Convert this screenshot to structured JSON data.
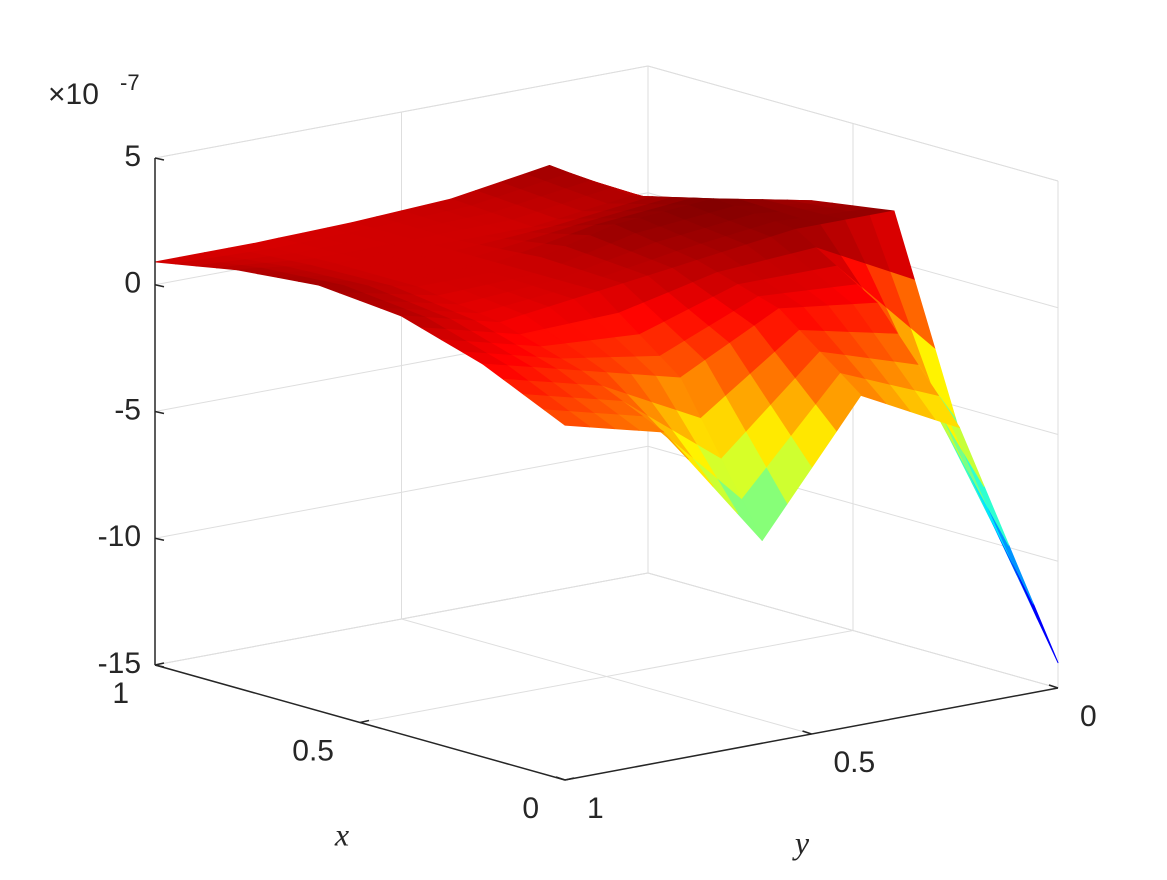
{
  "chart_data": {
    "type": "surface",
    "x": [
      0,
      0.2,
      0.4,
      0.6,
      0.8,
      1
    ],
    "y": [
      0,
      0.2,
      0.4,
      0.6,
      0.8,
      1
    ],
    "z": [
      [
        -14,
        -4,
        -2,
        -7,
        -2,
        -1
      ],
      [
        -8,
        0,
        0.5,
        -1.5,
        -0.5,
        0.5
      ],
      [
        2,
        2,
        1.5,
        1,
        0.5,
        1.5
      ],
      [
        1.5,
        2.3,
        2,
        1,
        1,
        1.8
      ],
      [
        0,
        1.5,
        1,
        1,
        1,
        1.5
      ],
      [
        -0.5,
        1.8,
        1.2,
        1,
        0.9,
        0.9
      ]
    ],
    "colormap": "jet",
    "xlim": [
      0,
      1
    ],
    "ylim": [
      0,
      1
    ],
    "zlim": [
      -15,
      5
    ],
    "xticks": [
      0,
      0.5,
      1
    ],
    "yticks": [
      0,
      0.5,
      1
    ],
    "zticks": [
      -15,
      -10,
      -5,
      0,
      5
    ],
    "xlabel": "x",
    "ylabel": "y",
    "z_multiplier": {
      "base": "×10",
      "exponent": "-7"
    },
    "grid": true
  }
}
